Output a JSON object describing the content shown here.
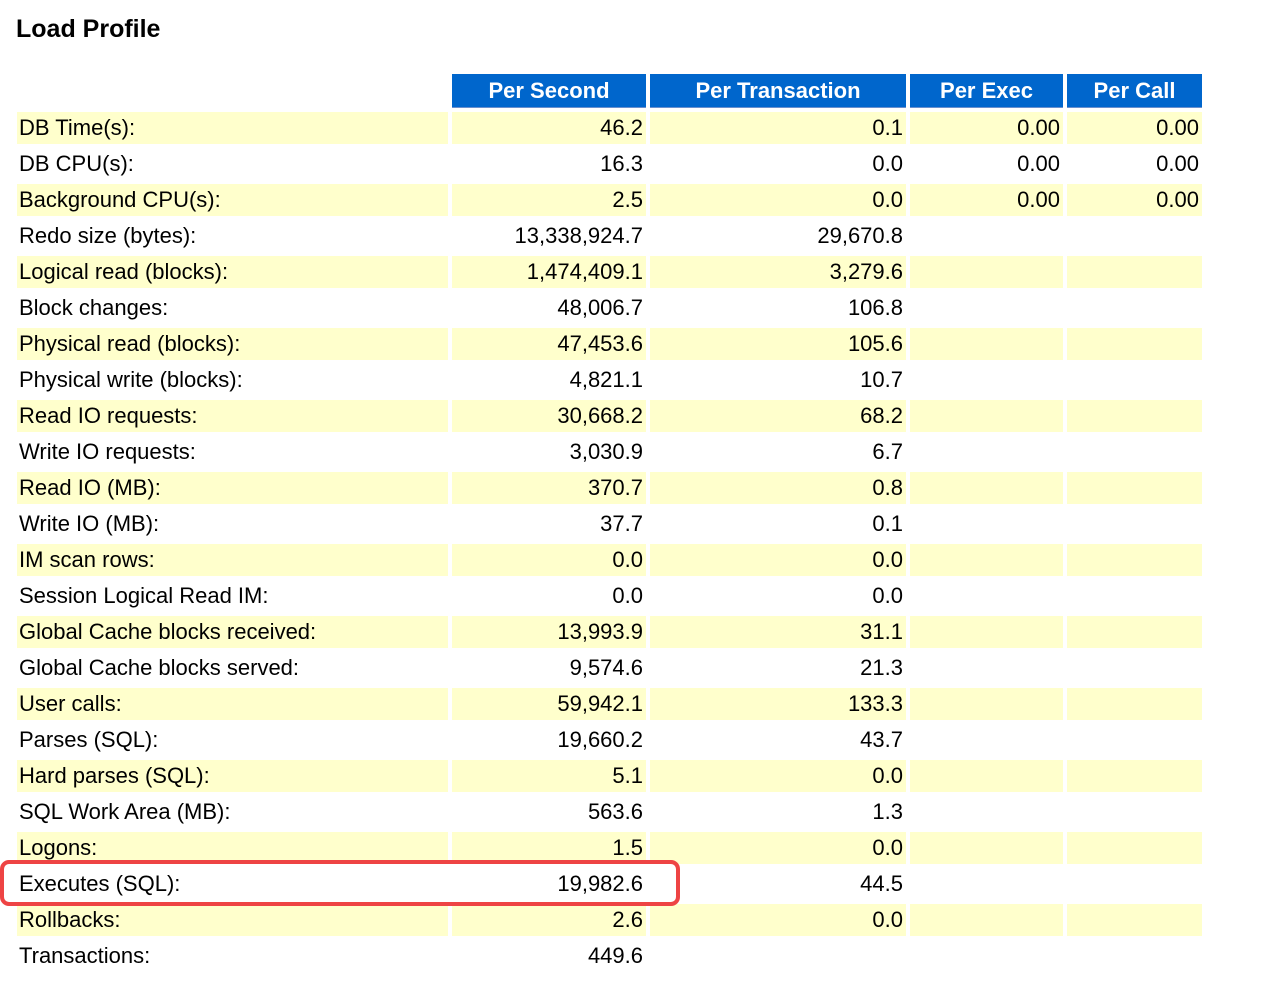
{
  "title": "Load Profile",
  "headers": [
    "Per Second",
    "Per Transaction",
    "Per Exec",
    "Per Call"
  ],
  "rows": [
    {
      "label": "DB Time(s):",
      "per_second": "46.2",
      "per_transaction": "0.1",
      "per_exec": "0.00",
      "per_call": "0.00"
    },
    {
      "label": "DB CPU(s):",
      "per_second": "16.3",
      "per_transaction": "0.0",
      "per_exec": "0.00",
      "per_call": "0.00"
    },
    {
      "label": "Background CPU(s):",
      "per_second": "2.5",
      "per_transaction": "0.0",
      "per_exec": "0.00",
      "per_call": "0.00"
    },
    {
      "label": "Redo size (bytes):",
      "per_second": "13,338,924.7",
      "per_transaction": "29,670.8",
      "per_exec": "",
      "per_call": ""
    },
    {
      "label": "Logical read (blocks):",
      "per_second": "1,474,409.1",
      "per_transaction": "3,279.6",
      "per_exec": "",
      "per_call": ""
    },
    {
      "label": "Block changes:",
      "per_second": "48,006.7",
      "per_transaction": "106.8",
      "per_exec": "",
      "per_call": ""
    },
    {
      "label": "Physical read (blocks):",
      "per_second": "47,453.6",
      "per_transaction": "105.6",
      "per_exec": "",
      "per_call": ""
    },
    {
      "label": "Physical write (blocks):",
      "per_second": "4,821.1",
      "per_transaction": "10.7",
      "per_exec": "",
      "per_call": ""
    },
    {
      "label": "Read IO requests:",
      "per_second": "30,668.2",
      "per_transaction": "68.2",
      "per_exec": "",
      "per_call": ""
    },
    {
      "label": "Write IO requests:",
      "per_second": "3,030.9",
      "per_transaction": "6.7",
      "per_exec": "",
      "per_call": ""
    },
    {
      "label": "Read IO (MB):",
      "per_second": "370.7",
      "per_transaction": "0.8",
      "per_exec": "",
      "per_call": ""
    },
    {
      "label": "Write IO (MB):",
      "per_second": "37.7",
      "per_transaction": "0.1",
      "per_exec": "",
      "per_call": ""
    },
    {
      "label": "IM scan rows:",
      "per_second": "0.0",
      "per_transaction": "0.0",
      "per_exec": "",
      "per_call": ""
    },
    {
      "label": "Session Logical Read IM:",
      "per_second": "0.0",
      "per_transaction": "0.0",
      "per_exec": "",
      "per_call": ""
    },
    {
      "label": "Global Cache blocks received:",
      "per_second": "13,993.9",
      "per_transaction": "31.1",
      "per_exec": "",
      "per_call": ""
    },
    {
      "label": "Global Cache blocks served:",
      "per_second": "9,574.6",
      "per_transaction": "21.3",
      "per_exec": "",
      "per_call": ""
    },
    {
      "label": "User calls:",
      "per_second": "59,942.1",
      "per_transaction": "133.3",
      "per_exec": "",
      "per_call": ""
    },
    {
      "label": "Parses (SQL):",
      "per_second": "19,660.2",
      "per_transaction": "43.7",
      "per_exec": "",
      "per_call": ""
    },
    {
      "label": "Hard parses (SQL):",
      "per_second": "5.1",
      "per_transaction": "0.0",
      "per_exec": "",
      "per_call": ""
    },
    {
      "label": "SQL Work Area (MB):",
      "per_second": "563.6",
      "per_transaction": "1.3",
      "per_exec": "",
      "per_call": ""
    },
    {
      "label": "Logons:",
      "per_second": "1.5",
      "per_transaction": "0.0",
      "per_exec": "",
      "per_call": ""
    },
    {
      "label": "Executes (SQL):",
      "per_second": "19,982.6",
      "per_transaction": "44.5",
      "per_exec": "",
      "per_call": ""
    },
    {
      "label": "Rollbacks:",
      "per_second": "2.6",
      "per_transaction": "0.0",
      "per_exec": "",
      "per_call": ""
    },
    {
      "label": "Transactions:",
      "per_second": "449.6",
      "per_transaction": "",
      "per_exec": "",
      "per_call": ""
    }
  ],
  "colors": {
    "header_bg": "#0066cc",
    "header_text": "#ffffff",
    "row_alt_bg": "#ffffcc",
    "highlight_border": "#ee4444"
  }
}
